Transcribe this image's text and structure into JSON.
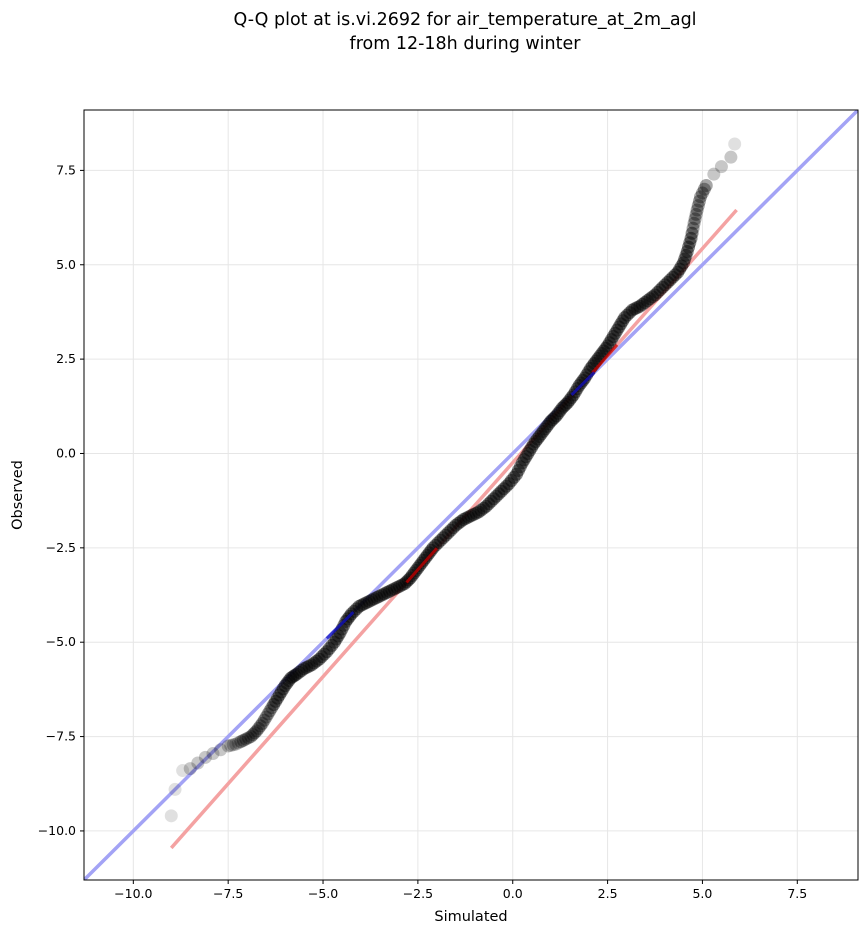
{
  "chart_data": {
    "type": "scatter",
    "title_lines": [
      "Q-Q plot at is.vi.2692 for air_temperature_at_2m_agl",
      "from 12-18h during winter"
    ],
    "xlabel": "Simulated",
    "ylabel": "Observed",
    "xlim": [
      -11.3,
      9.1
    ],
    "ylim": [
      -11.3,
      9.1
    ],
    "grid": true,
    "x_ticks": [
      -10.0,
      -7.5,
      -5.0,
      -2.5,
      0.0,
      2.5,
      5.0,
      7.5
    ],
    "y_ticks": [
      -10.0,
      -7.5,
      -5.0,
      -2.5,
      0.0,
      2.5,
      5.0,
      7.5
    ],
    "x_tick_labels": [
      "−10.0",
      "−7.5",
      "−5.0",
      "−2.5",
      "0.0",
      "2.5",
      "5.0",
      "7.5"
    ],
    "y_tick_labels": [
      "−10.0",
      "−7.5",
      "−5.0",
      "−2.5",
      "0.0",
      "2.5",
      "5.0",
      "7.5"
    ],
    "points": [
      [
        -9.0,
        -9.6
      ],
      [
        -8.9,
        -8.9
      ],
      [
        -8.7,
        -8.4
      ],
      [
        -8.5,
        -8.35
      ],
      [
        -8.3,
        -8.2
      ],
      [
        -8.1,
        -8.05
      ],
      [
        -7.9,
        -7.95
      ],
      [
        -7.7,
        -7.85
      ],
      [
        -7.5,
        -7.75
      ],
      [
        -7.3,
        -7.7
      ],
      [
        -7.1,
        -7.6
      ],
      [
        -6.9,
        -7.5
      ],
      [
        -6.75,
        -7.35
      ],
      [
        -6.6,
        -7.15
      ],
      [
        -6.45,
        -6.9
      ],
      [
        -6.3,
        -6.65
      ],
      [
        -6.15,
        -6.4
      ],
      [
        -6.0,
        -6.15
      ],
      [
        -5.85,
        -5.95
      ],
      [
        -5.7,
        -5.85
      ],
      [
        -5.5,
        -5.7
      ],
      [
        -5.3,
        -5.6
      ],
      [
        -5.1,
        -5.45
      ],
      [
        -4.9,
        -5.25
      ],
      [
        -4.7,
        -5.0
      ],
      [
        -4.55,
        -4.75
      ],
      [
        -4.4,
        -4.45
      ],
      [
        -4.25,
        -4.25
      ],
      [
        -4.05,
        -4.05
      ],
      [
        -3.85,
        -3.95
      ],
      [
        -3.65,
        -3.85
      ],
      [
        -3.45,
        -3.75
      ],
      [
        -3.25,
        -3.65
      ],
      [
        -3.05,
        -3.55
      ],
      [
        -2.85,
        -3.45
      ],
      [
        -2.7,
        -3.3
      ],
      [
        -2.55,
        -3.1
      ],
      [
        -2.4,
        -2.9
      ],
      [
        -2.25,
        -2.7
      ],
      [
        -2.1,
        -2.5
      ],
      [
        -1.9,
        -2.3
      ],
      [
        -1.7,
        -2.1
      ],
      [
        -1.5,
        -1.9
      ],
      [
        -1.3,
        -1.75
      ],
      [
        -1.1,
        -1.65
      ],
      [
        -0.9,
        -1.55
      ],
      [
        -0.7,
        -1.4
      ],
      [
        -0.5,
        -1.2
      ],
      [
        -0.3,
        -1.0
      ],
      [
        -0.1,
        -0.8
      ],
      [
        0.1,
        -0.55
      ],
      [
        0.25,
        -0.25
      ],
      [
        0.4,
        0.0
      ],
      [
        0.55,
        0.25
      ],
      [
        0.7,
        0.45
      ],
      [
        0.85,
        0.65
      ],
      [
        1.0,
        0.85
      ],
      [
        1.15,
        1.0
      ],
      [
        1.3,
        1.2
      ],
      [
        1.45,
        1.35
      ],
      [
        1.6,
        1.55
      ],
      [
        1.75,
        1.8
      ],
      [
        1.9,
        2.0
      ],
      [
        2.05,
        2.25
      ],
      [
        2.2,
        2.45
      ],
      [
        2.35,
        2.65
      ],
      [
        2.5,
        2.85
      ],
      [
        2.65,
        3.1
      ],
      [
        2.8,
        3.35
      ],
      [
        2.95,
        3.6
      ],
      [
        3.15,
        3.8
      ],
      [
        3.35,
        3.9
      ],
      [
        3.55,
        4.05
      ],
      [
        3.75,
        4.2
      ],
      [
        3.95,
        4.4
      ],
      [
        4.15,
        4.6
      ],
      [
        4.35,
        4.8
      ],
      [
        4.5,
        5.05
      ],
      [
        4.6,
        5.35
      ],
      [
        4.7,
        5.7
      ],
      [
        4.78,
        6.1
      ],
      [
        4.86,
        6.45
      ],
      [
        4.95,
        6.8
      ],
      [
        5.1,
        7.1
      ],
      [
        5.3,
        7.4
      ],
      [
        5.5,
        7.6
      ],
      [
        5.75,
        7.85
      ],
      [
        5.85,
        8.2
      ]
    ],
    "reference_line": {
      "from": [
        -11.3,
        -11.3
      ],
      "to": [
        9.1,
        9.1
      ],
      "color": "#a3a3f5"
    },
    "fit_line": {
      "from": [
        -9.0,
        -10.45
      ],
      "to": [
        5.9,
        6.45
      ],
      "color": "#f4a2a2"
    },
    "colors": {
      "points": "#000000",
      "overlap_fit": "#c80000",
      "overlap_reference": "#1010c0"
    }
  }
}
